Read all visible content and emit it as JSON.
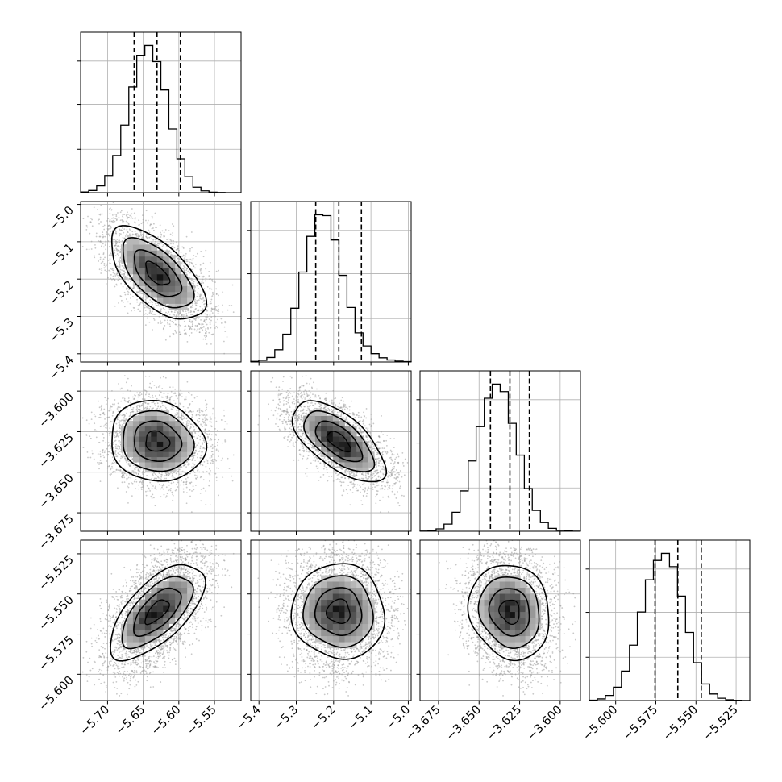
{
  "figure": {
    "title": "",
    "variables": [
      "",
      "",
      "",
      ""
    ]
  },
  "colors": {
    "line": "#000000",
    "grid": "#b0b0b0",
    "sample_points": "#9a9a9a",
    "density_low": "#ffffff",
    "density_high": "#000000"
  },
  "chart_data": {
    "type": "corner",
    "grid": true,
    "samples_per_variable": 10000,
    "parameters": [
      {
        "index": 0,
        "mean": -5.6306,
        "std": 0.0325,
        "axis_range": [
          -5.7378,
          -5.5127
        ],
        "ticks": [
          -5.7,
          -5.65,
          -5.6,
          -5.55
        ],
        "tick_labels": [
          "−5.70",
          "−5.65",
          "−5.60",
          "−5.55"
        ],
        "quantiles": {
          "q16": -5.6627,
          "q50": -5.6306,
          "q84": -5.5978
        },
        "histogram": {
          "bins": [
            -5.7378,
            -5.7265,
            -5.7153,
            -5.704,
            -5.6928,
            -5.6815,
            -5.6702,
            -5.659,
            -5.6477,
            -5.6365,
            -5.6252,
            -5.614,
            -5.6027,
            -5.5915,
            -5.5802,
            -5.569,
            -5.5577,
            -5.5465,
            -5.5352,
            -5.524,
            -5.5127
          ],
          "counts": [
            8,
            25,
            79,
            199,
            432,
            785,
            1229,
            1597,
            1712,
            1524,
            1194,
            741,
            394,
            186,
            63,
            21,
            6,
            2,
            0,
            0
          ]
        }
      },
      {
        "index": 1,
        "mean": -5.1863,
        "std": 0.0609,
        "axis_range": [
          -5.422,
          -4.9923
        ],
        "ticks": [
          -5.4,
          -5.3,
          -5.2,
          -5.1,
          -5.0
        ],
        "tick_labels": [
          "−5.4",
          "−5.3",
          "−5.2",
          "−5.1",
          "−5.0"
        ],
        "quantiles": {
          "q16": -5.2479,
          "q50": -5.186,
          "q84": -5.1256
        },
        "histogram": {
          "bins": [
            -5.422,
            -5.4005,
            -5.379,
            -5.3576,
            -5.3361,
            -5.3146,
            -5.2931,
            -5.2716,
            -5.2502,
            -5.2287,
            -5.2072,
            -5.1857,
            -5.1642,
            -5.1427,
            -5.1213,
            -5.0998,
            -5.0783,
            -5.0568,
            -5.0353,
            -5.0138,
            -4.9923
          ],
          "counts": [
            6,
            17,
            48,
            131,
            298,
            576,
            963,
            1346,
            1577,
            1568,
            1307,
            928,
            584,
            312,
            172,
            89,
            45,
            21,
            9,
            4
          ]
        }
      },
      {
        "index": 2,
        "mean": -3.631,
        "std": 0.0122,
        "axis_range": [
          -3.6864,
          -3.5875
        ],
        "ticks": [
          -3.675,
          -3.65,
          -3.625,
          -3.6
        ],
        "tick_labels": [
          "−3.675",
          "−3.650",
          "−3.625",
          "−3.600"
        ],
        "quantiles": {
          "q16": -3.643,
          "q50": -3.631,
          "q84": -3.619
        },
        "histogram": {
          "bins": [
            -3.6864,
            -3.6815,
            -3.6765,
            -3.6716,
            -3.6666,
            -3.6617,
            -3.6567,
            -3.6518,
            -3.6468,
            -3.6419,
            -3.637,
            -3.632,
            -3.6271,
            -3.6221,
            -3.6172,
            -3.6122,
            -3.6073,
            -3.6023,
            -3.5974,
            -3.5924,
            -3.5875
          ],
          "counts": [
            2,
            7,
            26,
            78,
            207,
            439,
            765,
            1138,
            1447,
            1601,
            1519,
            1174,
            828,
            463,
            227,
            95,
            32,
            11,
            3,
            1
          ]
        }
      },
      {
        "index": 3,
        "mean": -5.561,
        "std": 0.0145,
        "axis_range": [
          -5.6164,
          -5.5165
        ],
        "ticks": [
          -5.6,
          -5.575,
          -5.55,
          -5.525
        ],
        "tick_labels": [
          "−5.600",
          "−5.575",
          "−5.550",
          "−5.525"
        ],
        "quantiles": {
          "q16": -5.5755,
          "q50": -5.5613,
          "q84": -5.5467
        },
        "histogram": {
          "bins": [
            -5.6164,
            -5.6114,
            -5.6064,
            -5.6014,
            -5.5964,
            -5.5914,
            -5.5865,
            -5.5815,
            -5.5765,
            -5.5715,
            -5.5665,
            -5.5615,
            -5.5565,
            -5.5515,
            -5.5465,
            -5.5415,
            -5.5365,
            -5.5315,
            -5.5265,
            -5.5215,
            -5.5165
          ],
          "counts": [
            4,
            17,
            53,
            138,
            305,
            572,
            914,
            1247,
            1446,
            1519,
            1382,
            1078,
            703,
            391,
            171,
            68,
            24,
            8,
            3,
            1
          ]
        }
      }
    ],
    "correlations": [
      {
        "x": 0,
        "y": 1,
        "r": -0.62
      },
      {
        "x": 0,
        "y": 2,
        "r": -0.1
      },
      {
        "x": 1,
        "y": 2,
        "r": -0.64
      },
      {
        "x": 0,
        "y": 3,
        "r": 0.65
      },
      {
        "x": 1,
        "y": 3,
        "r": -0.04
      },
      {
        "x": 2,
        "y": 3,
        "r": -0.12
      }
    ],
    "contour_levels_sigma": [
      0.5,
      1.0,
      1.5,
      2.0
    ]
  }
}
